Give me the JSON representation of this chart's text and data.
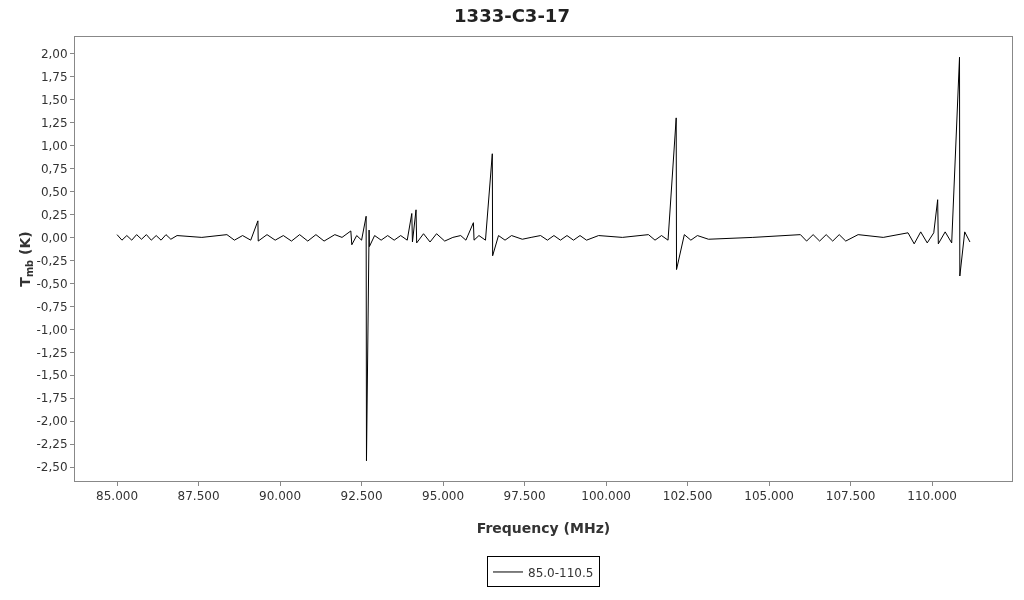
{
  "chart_data": {
    "type": "line",
    "title": "1333-C3-17",
    "xlabel": "Frequency (MHz)",
    "ylabel": "T$_{mb}$ (K)",
    "xlim": [
      83710,
      112450
    ],
    "ylim": [
      -2.65,
      2.18
    ],
    "xticks": [
      {
        "value": 85000,
        "label": "85.000"
      },
      {
        "value": 87500,
        "label": "87.500"
      },
      {
        "value": 90000,
        "label": "90.000"
      },
      {
        "value": 92500,
        "label": "92.500"
      },
      {
        "value": 95000,
        "label": "95.000"
      },
      {
        "value": 97500,
        "label": "97.500"
      },
      {
        "value": 100000,
        "label": "100.000"
      },
      {
        "value": 102500,
        "label": "102.500"
      },
      {
        "value": 105000,
        "label": "105.000"
      },
      {
        "value": 107500,
        "label": "107.500"
      },
      {
        "value": 110000,
        "label": "110.000"
      }
    ],
    "yticks": [
      {
        "value": 2,
        "label": "2,00"
      },
      {
        "value": 1.75,
        "label": "1,75"
      },
      {
        "value": 1.5,
        "label": "1,50"
      },
      {
        "value": 1.25,
        "label": "1,25"
      },
      {
        "value": 1,
        "label": "1,00"
      },
      {
        "value": 0.75,
        "label": "0,75"
      },
      {
        "value": 0.5,
        "label": "0,50"
      },
      {
        "value": 0.25,
        "label": "0,25"
      },
      {
        "value": 0,
        "label": "0,00"
      },
      {
        "value": -0.25,
        "label": "-0,25"
      },
      {
        "value": -0.5,
        "label": "-0,50"
      },
      {
        "value": -0.75,
        "label": "-0,75"
      },
      {
        "value": -1,
        "label": "-1,00"
      },
      {
        "value": -1.25,
        "label": "-1,25"
      },
      {
        "value": -1.5,
        "label": "-1,50"
      },
      {
        "value": -1.75,
        "label": "-1,75"
      },
      {
        "value": -2,
        "label": "-2,00"
      },
      {
        "value": -2.25,
        "label": "-2,25"
      },
      {
        "value": -2.5,
        "label": "-2,50"
      }
    ],
    "grid": false,
    "legend": "bottom",
    "series": [
      {
        "name": "85.0-110.5",
        "color": "#000000",
        "x": [
          85000,
          85150,
          85300,
          85450,
          85600,
          85750,
          85900,
          86050,
          86200,
          86350,
          86500,
          86650,
          86840,
          87600,
          88370,
          88600,
          88850,
          89100,
          89320,
          89330,
          89600,
          89850,
          90100,
          90350,
          90600,
          90850,
          91100,
          91350,
          91680,
          91900,
          92170,
          92200,
          92350,
          92500,
          92640,
          92650,
          92730,
          92740,
          92900,
          93100,
          93300,
          93500,
          93700,
          93900,
          94040,
          94060,
          94170,
          94190,
          94400,
          94600,
          94800,
          95050,
          95300,
          95540,
          95700,
          95930,
          95950,
          96100,
          96300,
          96510,
          96520,
          96700,
          96900,
          97100,
          97430,
          97700,
          97990,
          98200,
          98400,
          98600,
          98800,
          99000,
          99200,
          99400,
          99770,
          100500,
          101300,
          101500,
          101700,
          101900,
          102150,
          102160,
          102400,
          102600,
          102800,
          103140,
          104500,
          105960,
          106150,
          106350,
          106550,
          106750,
          106950,
          107150,
          107350,
          107730,
          108500,
          109260,
          109450,
          109650,
          109850,
          110050,
          110170,
          110190,
          110400,
          110600,
          110840,
          110850,
          111000,
          111160
        ],
        "values": [
          0.03,
          -0.03,
          0.02,
          -0.03,
          0.03,
          -0.02,
          0.03,
          -0.03,
          0.02,
          -0.03,
          0.03,
          -0.02,
          0.02,
          0,
          0.03,
          -0.03,
          0.02,
          -0.03,
          0.18,
          -0.04,
          0.03,
          -0.03,
          0.02,
          -0.04,
          0.03,
          -0.04,
          0.03,
          -0.04,
          0.03,
          0,
          0.07,
          -0.08,
          0.02,
          -0.03,
          0.23,
          -2.43,
          0.08,
          -0.1,
          0.02,
          -0.03,
          0.02,
          -0.03,
          0.02,
          -0.03,
          0.26,
          -0.05,
          0.3,
          -0.06,
          0.04,
          -0.05,
          0.04,
          -0.04,
          0,
          0.02,
          -0.03,
          0.16,
          -0.03,
          0.02,
          -0.03,
          0.91,
          -0.2,
          0.02,
          -0.03,
          0.02,
          -0.02,
          0,
          0.02,
          -0.03,
          0.02,
          -0.03,
          0.02,
          -0.03,
          0.02,
          -0.03,
          0.02,
          0,
          0.03,
          -0.03,
          0.02,
          -0.03,
          1.3,
          -0.35,
          0.03,
          -0.03,
          0.02,
          -0.02,
          0,
          0.03,
          -0.04,
          0.03,
          -0.04,
          0.03,
          -0.04,
          0.03,
          -0.04,
          0.03,
          0,
          0.05,
          -0.07,
          0.06,
          -0.06,
          0.05,
          0.41,
          -0.07,
          0.06,
          -0.06,
          1.96,
          -0.42,
          0.06,
          -0.05
        ]
      }
    ]
  }
}
